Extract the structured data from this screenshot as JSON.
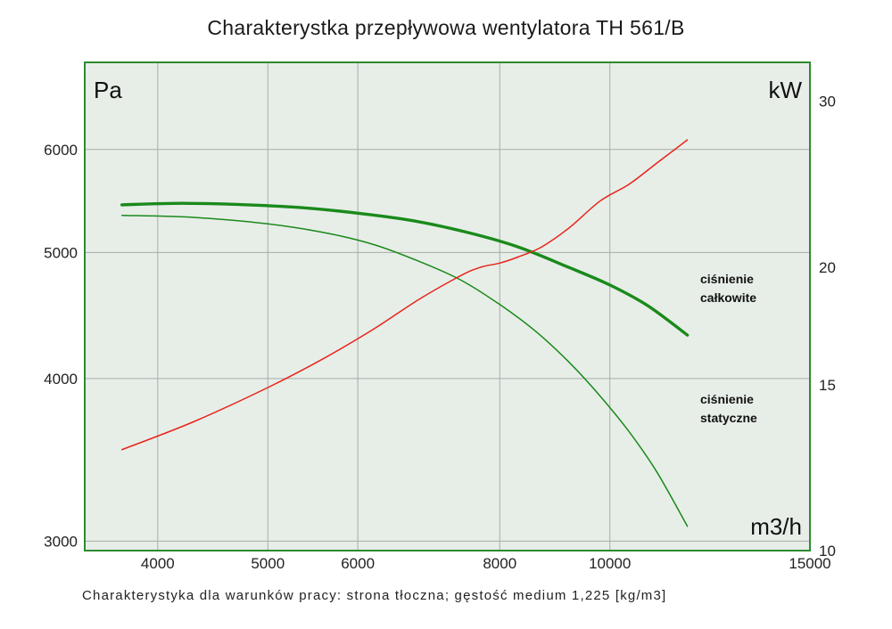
{
  "title": "Charakterystka przepływowa wentylatora TH 561/B",
  "footnote": "Charakterystyka dla warunków pracy: strona tłoczna; gęstość medium 1,225 [kg/m3]",
  "colors": {
    "plot_background": "#e7eee8",
    "frame": "#2e8b2e",
    "grid": "#a7aca8",
    "pressure": "#1a8a1a",
    "power": "#e8241c"
  },
  "chart_data": {
    "type": "line",
    "title": "Charakterystka przepływowa wentylatora TH 561/B",
    "x_scale": "log",
    "y_scale": "log",
    "xlim": [
      3450,
      15000
    ],
    "ylim": [
      2950,
      7000
    ],
    "y2lim": [
      10,
      33
    ],
    "x_ticks": [
      4000,
      5000,
      6000,
      8000,
      10000,
      15000
    ],
    "y_ticks": [
      3000,
      4000,
      5000,
      6000
    ],
    "y2_ticks": [
      10,
      15,
      20,
      30
    ],
    "unit_labels": {
      "y": "Pa",
      "y2": "kW",
      "x": "m3/h"
    },
    "grid": true,
    "series": [
      {
        "name": "ciśnienie całkowite",
        "axis": "left",
        "line_width": "thick",
        "label_lines": [
          "ciśnienie",
          "całkowite"
        ],
        "x": [
          3720,
          4200,
          4800,
          5400,
          6000,
          6700,
          7500,
          8300,
          9200,
          10000,
          10800,
          11700
        ],
        "y": [
          5440,
          5455,
          5440,
          5410,
          5360,
          5290,
          5180,
          5050,
          4870,
          4720,
          4550,
          4320
        ]
      },
      {
        "name": "ciśnienie statyczne",
        "axis": "left",
        "line_width": "thin",
        "label_lines": [
          "ciśnienie",
          "statyczne"
        ],
        "x": [
          3720,
          4300,
          5000,
          5600,
          6200,
          6800,
          7400,
          8000,
          8600,
          9200,
          9800,
          10400,
          11000,
          11700
        ],
        "y": [
          5340,
          5320,
          5260,
          5180,
          5070,
          4920,
          4760,
          4560,
          4350,
          4120,
          3880,
          3640,
          3390,
          3080
        ]
      },
      {
        "name": "",
        "axis": "right",
        "line_width": "thin",
        "x": [
          3720,
          4300,
          5000,
          5600,
          6200,
          6800,
          7400,
          7700,
          8000,
          8300,
          8700,
          9200,
          9800,
          10400,
          11000,
          11700
        ],
        "y": [
          12.8,
          13.7,
          14.9,
          16.0,
          17.2,
          18.5,
          19.6,
          20.0,
          20.2,
          20.5,
          21.0,
          22.0,
          23.5,
          24.5,
          25.8,
          27.3
        ]
      }
    ]
  }
}
